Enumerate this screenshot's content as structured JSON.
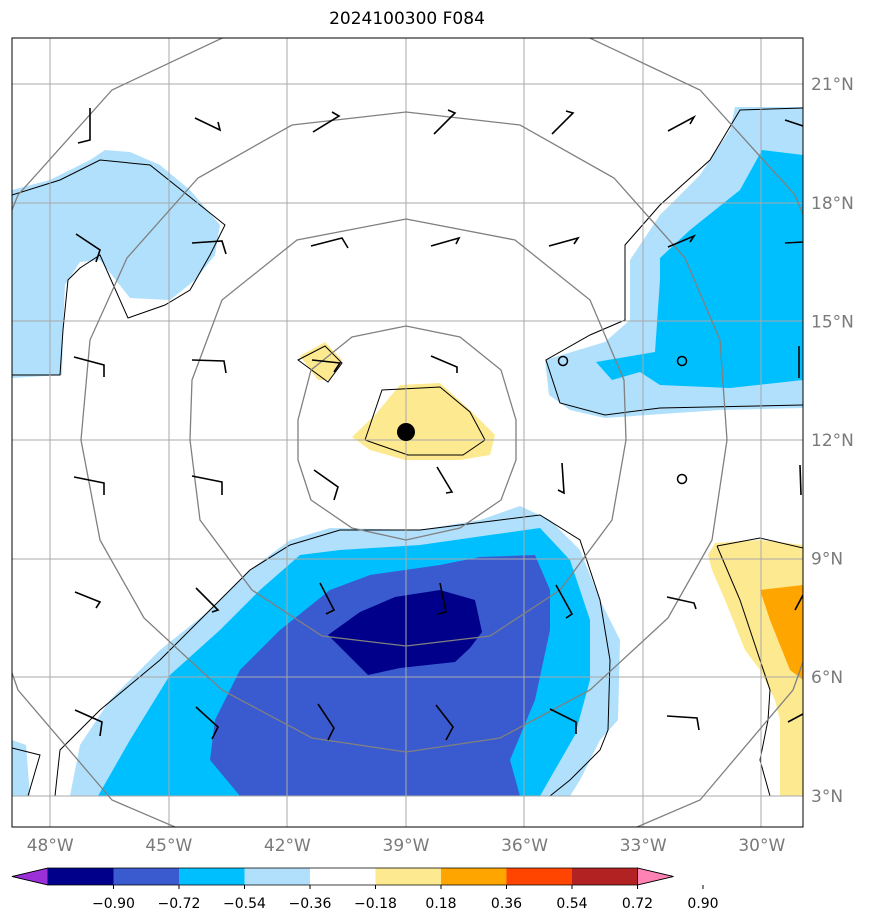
{
  "title": "2024100300 F084",
  "map": {
    "lon_range": [
      -49,
      -29
    ],
    "lat_range": [
      2,
      22
    ],
    "lat_ticks": [
      {
        "value": 21,
        "label": "21°N"
      },
      {
        "value": 18,
        "label": "18°N"
      },
      {
        "value": 15,
        "label": "15°N"
      },
      {
        "value": 12,
        "label": "12°N"
      },
      {
        "value": 9,
        "label": "9°N"
      },
      {
        "value": 6,
        "label": "6°N"
      },
      {
        "value": 3,
        "label": "3°N"
      }
    ],
    "lon_ticks": [
      {
        "value": -48,
        "label": "48°W"
      },
      {
        "value": -45,
        "label": "45°W"
      },
      {
        "value": -42,
        "label": "42°W"
      },
      {
        "value": -39,
        "label": "39°W"
      },
      {
        "value": -36,
        "label": "36°W"
      },
      {
        "value": -33,
        "label": "33°W"
      },
      {
        "value": -30,
        "label": "30°W"
      }
    ],
    "gridlines": true,
    "center": {
      "lon": -39,
      "lat": 12.2
    },
    "range_rings_deg": [
      2.75,
      5.5,
      8.2,
      11
    ]
  },
  "colorbar": {
    "levels": [
      "-0.90",
      "-0.72",
      "-0.54",
      "-0.36",
      "-0.18",
      "0.18",
      "0.36",
      "0.54",
      "0.72",
      "0.90"
    ],
    "colors": [
      "#9b30d9",
      "#00008b",
      "#3a5bd0",
      "#00bfff",
      "#b0e0fb",
      "#ffffff",
      "#fde98f",
      "#ffa500",
      "#ff4500",
      "#b22222",
      "#ff82b4"
    ]
  },
  "contour_colors": {
    "strong_neg": "#00008b",
    "mid_neg": "#3a5bd0",
    "neg": "#00bfff",
    "weak_neg": "#b0e0fb",
    "weak_pos": "#fde98f",
    "pos": "#ffa500"
  }
}
